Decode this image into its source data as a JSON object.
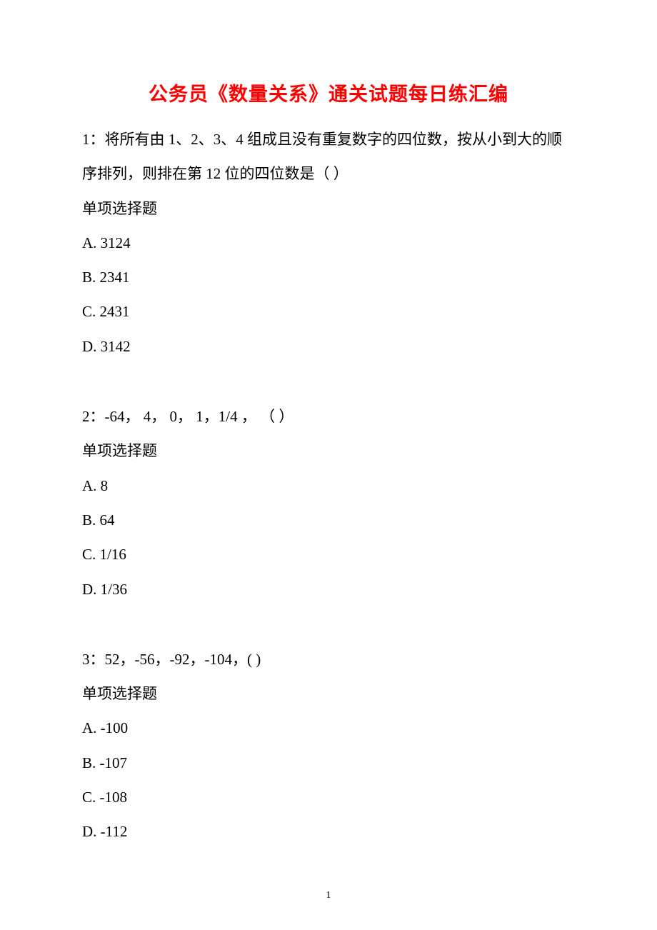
{
  "document": {
    "title": "公务员《数量关系》通关试题每日练汇编",
    "title_color": "#ff0000",
    "title_fontsize": 27,
    "body_fontsize": 21,
    "body_color": "#000000",
    "background_color": "#ffffff",
    "line_height": 2.3,
    "page_number": "1",
    "questions": [
      {
        "number": "1",
        "text": "1：将所有由 1、2、3、4 组成且没有重复数字的四位数，按从小到大的顺序排列，则排在第 12 位的四位数是（ ）",
        "type": "单项选择题",
        "options": [
          {
            "label": "A.",
            "value": "3124"
          },
          {
            "label": "B.",
            "value": "2341"
          },
          {
            "label": "C.",
            "value": "2431"
          },
          {
            "label": "D.",
            "value": "3142"
          }
        ]
      },
      {
        "number": "2",
        "text": "2：-64，  4， 0，  1，1/4  ， （  ）",
        "type": "单项选择题",
        "options": [
          {
            "label": "A.",
            "value": "8"
          },
          {
            "label": "B.",
            "value": "64"
          },
          {
            "label": "C.",
            "value": "1/16"
          },
          {
            "label": "D.",
            "value": "1/36"
          }
        ]
      },
      {
        "number": "3",
        "text": "3：52，-56，-92，-104，(  )",
        "type": "单项选择题",
        "options": [
          {
            "label": "A.",
            "value": "-100"
          },
          {
            "label": "B.",
            "value": "-107"
          },
          {
            "label": "C.",
            "value": "-108"
          },
          {
            "label": "D.",
            "value": "-112"
          }
        ]
      }
    ]
  }
}
